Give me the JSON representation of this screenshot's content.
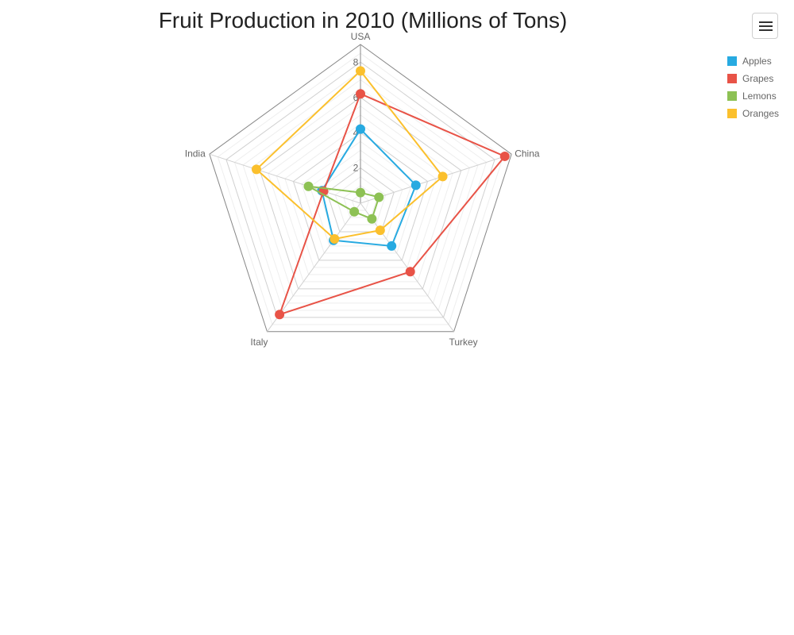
{
  "chart_data": {
    "type": "radar",
    "title": "Fruit Production in 2010 (Millions of Tons)",
    "categories": [
      "USA",
      "China",
      "Turkey",
      "Italy",
      "India"
    ],
    "rlim": [
      0,
      9
    ],
    "ticks": [
      "2",
      "4",
      "6",
      "8"
    ],
    "tick_values": [
      2,
      4,
      6,
      8
    ],
    "legend_position": "top-right",
    "series": [
      {
        "name": "Apples",
        "color": "#27aae1",
        "values": [
          4.2,
          3.3,
          3.0,
          2.6,
          2.3
        ]
      },
      {
        "name": "Grapes",
        "color": "#e85347",
        "values": [
          6.2,
          8.6,
          4.8,
          7.8,
          2.2
        ]
      },
      {
        "name": "Lemons",
        "color": "#8dc154",
        "values": [
          0.6,
          1.1,
          1.1,
          0.6,
          3.1
        ]
      },
      {
        "name": "Oranges",
        "color": "#fbc02d",
        "values": [
          7.5,
          4.9,
          1.9,
          2.5,
          6.2
        ]
      }
    ]
  },
  "menu": {
    "icon": "hamburger-menu-icon"
  }
}
